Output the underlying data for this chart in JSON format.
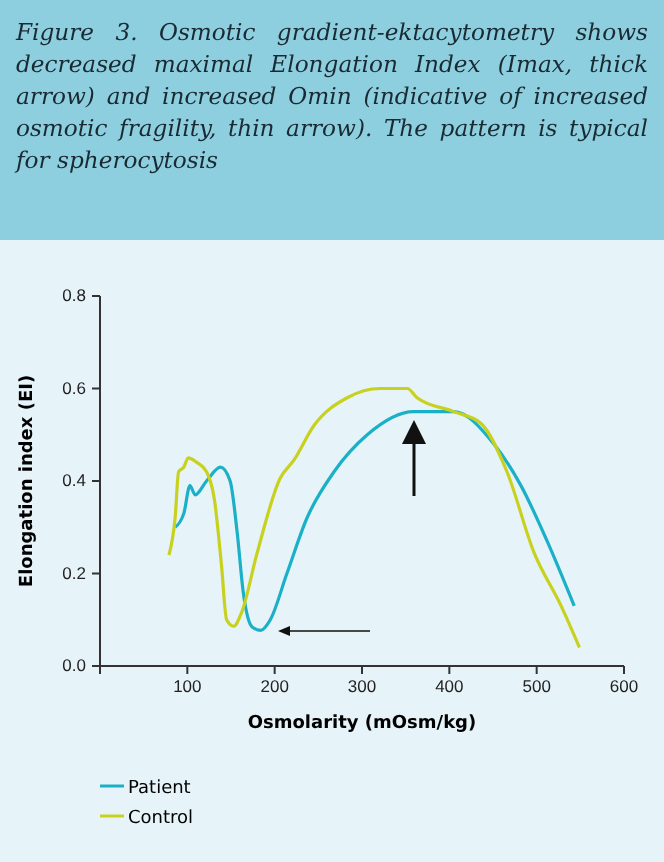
{
  "chart_data": {
    "type": "line",
    "title": "Figure 3. Osmotic gradient-ektacytometry shows decreased maximal Elongation Index (Imax, thick arrow) and increased Omin (indicative of increased osmotic fragility, thin arrow). The pattern is typical for spherocytosis",
    "xlabel": "Osmolarity (mOsm/kg)",
    "ylabel": "Elongation index (EI)",
    "xlim": [
      0,
      600
    ],
    "xticks": [
      {
        "value": 0,
        "label": null
      },
      100,
      200,
      300,
      400,
      500,
      600
    ],
    "ylim": [
      0,
      0.8
    ],
    "yticks": [
      "0.0",
      0.2,
      0.4,
      0.6,
      0.8
    ],
    "grid": false,
    "legend": "bottom left",
    "marker": "none",
    "line_style": "solid",
    "series": [
      {
        "name": "Patient",
        "color": "#1ab0c8",
        "x": [
          86,
          96,
          103,
          109,
          122,
          138,
          149,
          157,
          164,
          174,
          184,
          195,
          214,
          237,
          268,
          306,
          359,
          405,
          451,
          482,
          512,
          543
        ],
        "values": [
          0.3,
          0.33,
          0.39,
          0.37,
          0.4,
          0.43,
          0.4,
          0.29,
          0.16,
          0.085,
          0.077,
          0.1,
          0.2,
          0.32,
          0.42,
          0.5,
          0.55,
          0.55,
          0.48,
          0.39,
          0.27,
          0.13
        ]
      },
      {
        "name": "Control",
        "color": "#c8d21e",
        "x": [
          79,
          86,
          90,
          96,
          101,
          111,
          122,
          131,
          139,
          145,
          153,
          162,
          180,
          206,
          222,
          245,
          283,
          321,
          352,
          363,
          405,
          436,
          466,
          497,
          528,
          549
        ],
        "values": [
          0.24,
          0.32,
          0.42,
          0.43,
          0.45,
          0.44,
          0.42,
          0.36,
          0.22,
          0.1,
          0.086,
          0.115,
          0.245,
          0.405,
          0.445,
          0.52,
          0.58,
          0.6,
          0.6,
          0.58,
          0.55,
          0.525,
          0.42,
          0.245,
          0.13,
          0.04
        ]
      }
    ]
  }
}
